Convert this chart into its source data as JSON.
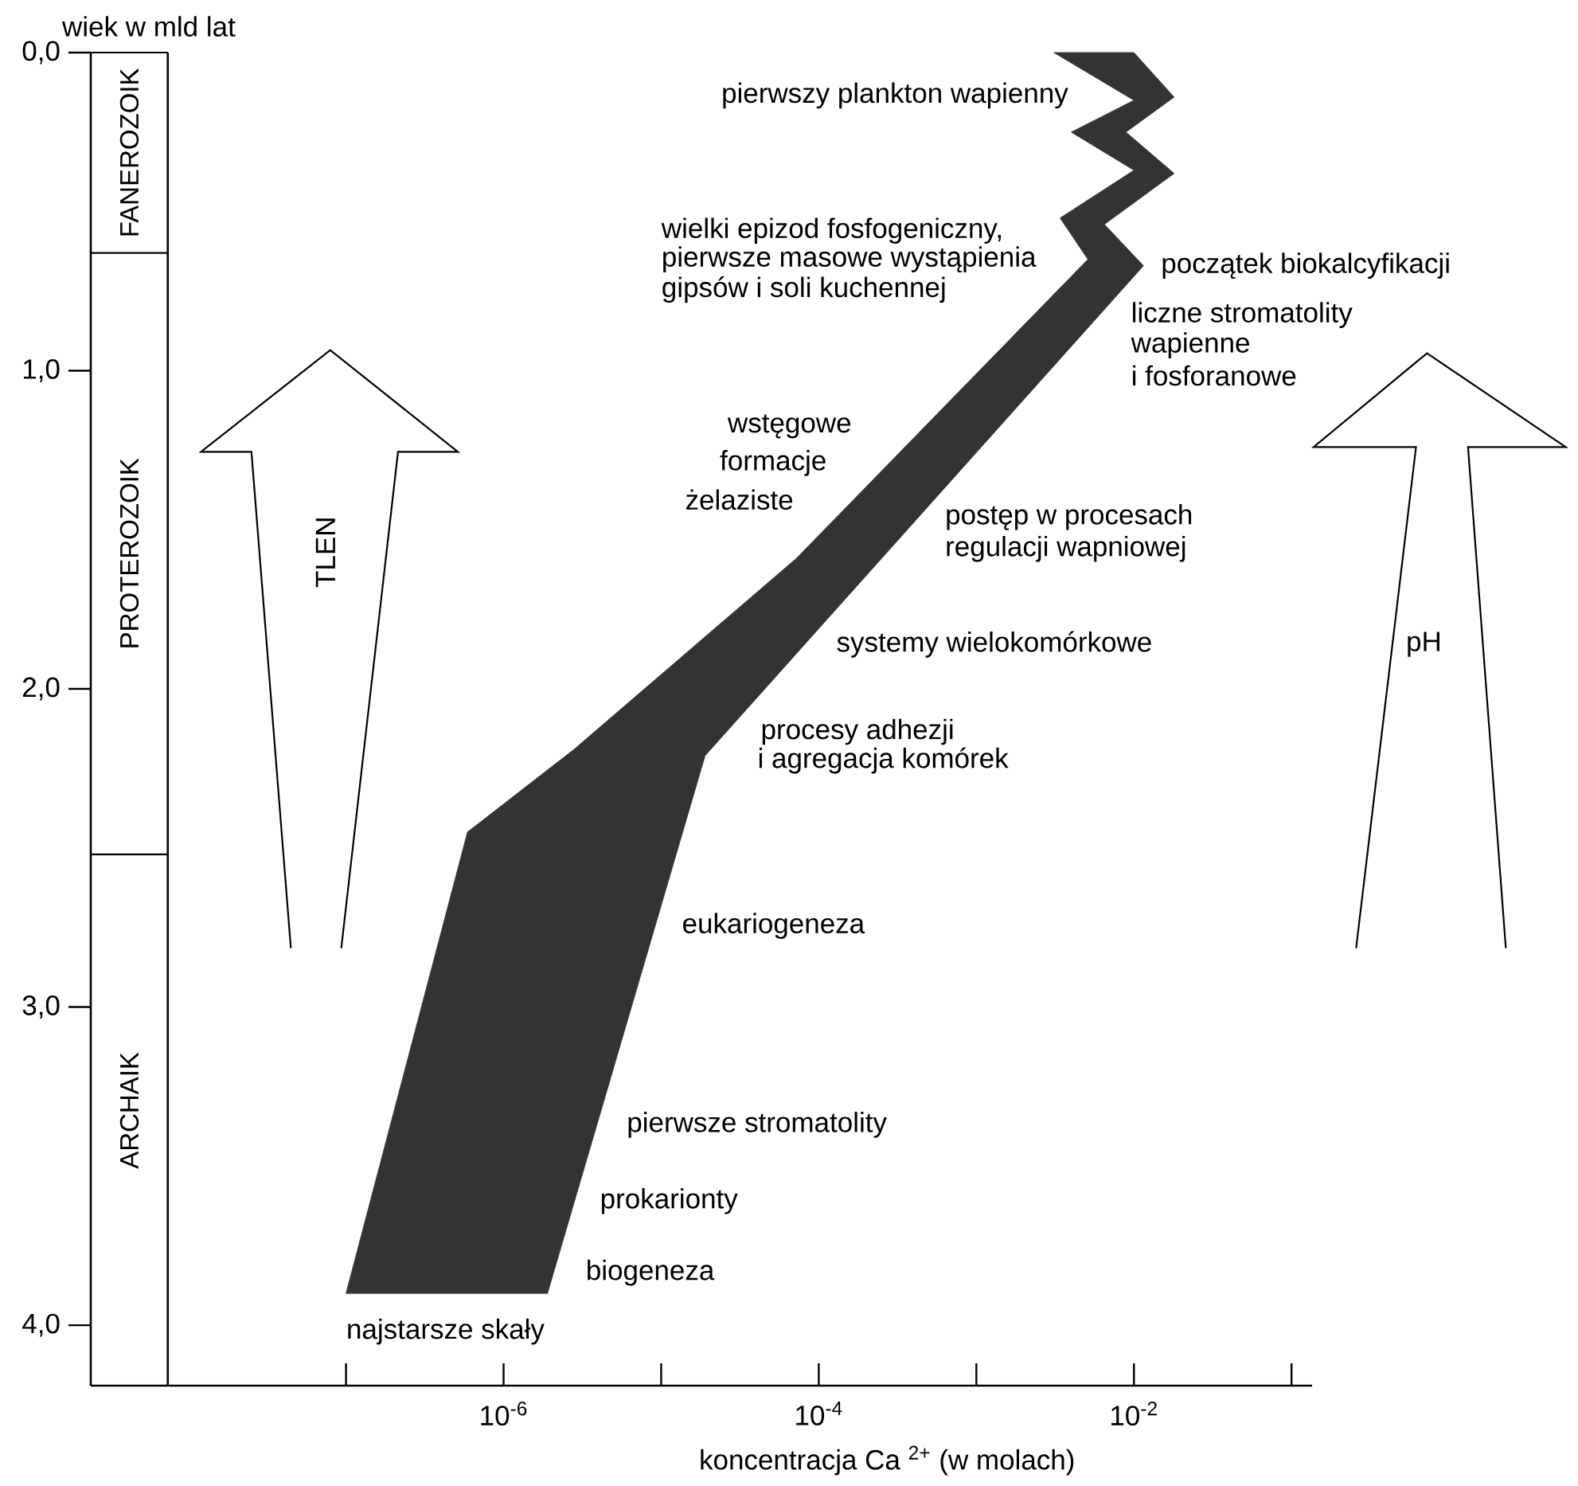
{
  "chart_data": {
    "type": "area",
    "xlabel": "koncentracja Ca $^{2+}$ (w molach)",
    "ylabel": "wiek w mld lat",
    "log": "x",
    "xlim": [
      2.4e-09,
      0.135
    ],
    "ylim": [
      4.19,
      0
    ],
    "xticks": [
      {
        "value": 1e-07,
        "label": null
      },
      {
        "value": 1e-06,
        "label": "10$^{-6}$"
      },
      {
        "value": 1e-05,
        "label": null
      },
      {
        "value": 0.0001,
        "label": "10$^{-4}$"
      },
      {
        "value": 0.001,
        "label": null
      },
      {
        "value": 0.01,
        "label": "10$^{-2}$"
      },
      {
        "value": 0.1,
        "label": null
      }
    ],
    "yticks": [
      {
        "value": 0,
        "label": "0,0"
      },
      {
        "value": 1,
        "label": "1,0"
      },
      {
        "value": 2,
        "label": "2,0"
      },
      {
        "value": 3,
        "label": "3,0"
      },
      {
        "value": 4,
        "label": "4,0"
      }
    ],
    "series": [
      {
        "color": "#333333",
        "x": [
          1e-07,
          5.9e-07,
          2.8e-06,
          7.2e-05,
          0.0051,
          0.0034,
          0.01,
          0.004,
          0.01,
          0.0031,
          0.01,
          0.018,
          0.0089,
          0.018,
          0.0065,
          0.0115,
          1.9e-05,
          1.9e-06
        ],
        "values": [
          3.9,
          2.45,
          2.19,
          1.59,
          0.65,
          0.52,
          0.37,
          0.25,
          0.15,
          0.0,
          0.0,
          0.14,
          0.25,
          0.38,
          0.54,
          0.67,
          2.21,
          3.9
        ]
      }
    ],
    "ref_lines": [
      {
        "axis": "x",
        "value": 7.4e-09
      }
    ],
    "annotations": [
      "FANEROZOIK",
      "PROTEROZOIK",
      "ARCHAIK",
      "pierwszy plankton wapienny",
      "wielki epizod fosfogeniczny,",
      "pierwsze masowe wystąpienia",
      "gipsów i soli kuchennej",
      "początek biokalcyfikacji",
      "liczne stromatolity",
      "wapienne",
      "i fosforanowe",
      "wstęgowe",
      "formacje",
      "żelaziste",
      "postęp w procesach",
      "regulacji wapniowej",
      "systemy wielokomórkowe",
      "procesy adhezji",
      "i agregacja komórek",
      "eukariogeneza",
      "pierwsze stromatolity",
      "prokarionty",
      "biogeneza",
      "najstarsze skały",
      "TLEN",
      "pH"
    ]
  }
}
